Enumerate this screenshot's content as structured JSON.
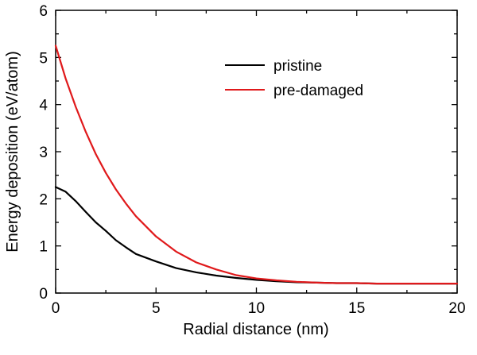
{
  "chart_data": {
    "type": "line",
    "xlabel": "Radial distance (nm)",
    "ylabel": "Energy deposition (eV/atom)",
    "xlim": [
      0,
      20
    ],
    "ylim": [
      0,
      6
    ],
    "xticks": [
      0,
      5,
      10,
      15,
      20
    ],
    "yticks": [
      0,
      1,
      2,
      3,
      4,
      5,
      6
    ],
    "grid": false,
    "legend_position": "top-right",
    "series": [
      {
        "name": "pristine",
        "color": "#000000",
        "x": [
          0,
          0.5,
          1,
          1.5,
          2,
          2.5,
          3,
          3.5,
          4,
          5,
          6,
          7,
          8,
          9,
          10,
          11,
          12,
          13,
          14,
          15,
          16,
          17,
          18,
          19,
          20
        ],
        "y": [
          2.25,
          2.15,
          1.95,
          1.72,
          1.5,
          1.32,
          1.12,
          0.97,
          0.83,
          0.67,
          0.53,
          0.44,
          0.37,
          0.32,
          0.28,
          0.25,
          0.23,
          0.22,
          0.21,
          0.21,
          0.2,
          0.2,
          0.2,
          0.2,
          0.2
        ]
      },
      {
        "name": "pre-damaged",
        "color": "#e0191b",
        "x": [
          0,
          0.5,
          1,
          1.5,
          2,
          2.5,
          3,
          3.5,
          4,
          5,
          6,
          7,
          8,
          9,
          10,
          11,
          12,
          13,
          14,
          15,
          16,
          17,
          18,
          19,
          20
        ],
        "y": [
          5.25,
          4.55,
          3.95,
          3.42,
          2.95,
          2.55,
          2.2,
          1.9,
          1.63,
          1.2,
          0.88,
          0.65,
          0.5,
          0.38,
          0.31,
          0.27,
          0.24,
          0.22,
          0.21,
          0.21,
          0.2,
          0.2,
          0.2,
          0.2,
          0.2
        ]
      }
    ]
  }
}
